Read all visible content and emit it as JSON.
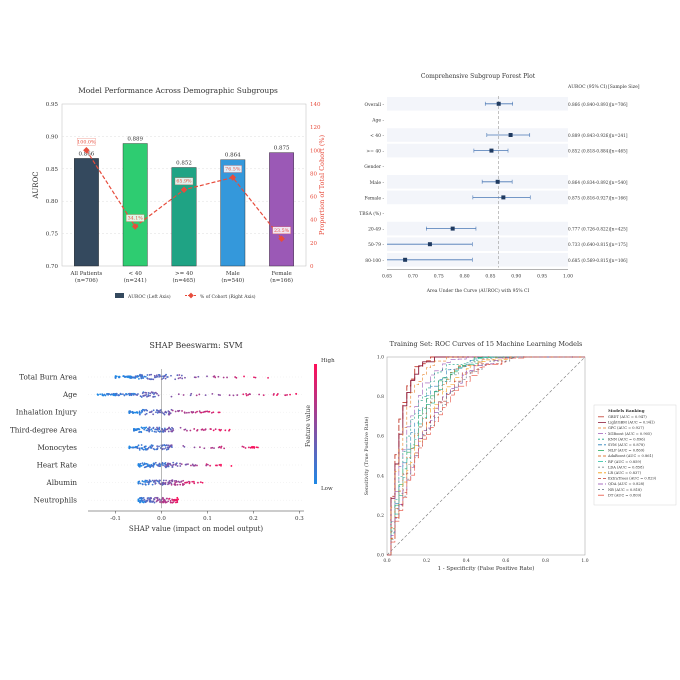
{
  "chart_data": [
    {
      "type": "bar",
      "title": "Model Performance Across Demographic Subgroups",
      "ylabel": "AUROC",
      "ylabel_right": "Proportion of Total Cohort (%)",
      "ylim": [
        0.7,
        0.95
      ],
      "ylim_right": [
        0,
        140
      ],
      "yticks": [
        "0.70",
        "0.75",
        "0.80",
        "0.85",
        "0.90",
        "0.95"
      ],
      "yticks_right": [
        "0",
        "20",
        "40",
        "60",
        "80",
        "100",
        "120",
        "140"
      ],
      "categories": [
        "All Patients",
        "< 40",
        ">= 40",
        "Male",
        "Female"
      ],
      "category_n": [
        "(n=706)",
        "(n=241)",
        "(n=465)",
        "(n=540)",
        "(n=166)"
      ],
      "values": [
        0.866,
        0.889,
        0.852,
        0.864,
        0.875
      ],
      "value_labels": [
        "0.866",
        "0.889",
        "0.852",
        "0.864",
        "0.875"
      ],
      "colors": [
        "#34495e",
        "#2ecc71",
        "#1fa384",
        "#3498db",
        "#9b59b6"
      ],
      "cohort_pct": [
        100.0,
        34.1,
        65.9,
        76.5,
        23.5
      ],
      "cohort_labels": [
        "100.0%",
        "34.1%",
        "65.9%",
        "76.5%",
        "23.5%"
      ],
      "legend": [
        "AUROC (Left Axis)",
        "% of Cohort (Right Axis)"
      ],
      "legend_position": "bottom"
    },
    {
      "type": "scatter",
      "title": "Comprehensive Subgroup Forest Plot",
      "xlabel": "Area Under the Curve (AUROC) with 95% CI",
      "xlim": [
        0.65,
        1.0
      ],
      "xticks": [
        "0.65",
        "0.70",
        "0.75",
        "0.80",
        "0.85",
        "0.90",
        "0.95",
        "1.00"
      ],
      "reference_x": 0.866,
      "header_ci": "AUROC (95% CI)",
      "header_n": "[Sample Size]",
      "rows": [
        {
          "label": "Overall -",
          "auc": 0.866,
          "lo": 0.84,
          "hi": 0.893,
          "ci_text": "0.866 (0.840-0.893)",
          "n_text": "[n=706]"
        },
        {
          "label": "Age -",
          "header": true
        },
        {
          "label": "< 40 -",
          "auc": 0.889,
          "lo": 0.843,
          "hi": 0.926,
          "ci_text": "0.889 (0.843-0.926)",
          "n_text": "[n=241]"
        },
        {
          "label": ">= 40 -",
          "auc": 0.852,
          "lo": 0.818,
          "hi": 0.884,
          "ci_text": "0.852 (0.818-0.884)",
          "n_text": "[n=465]"
        },
        {
          "label": "Gender -",
          "header": true
        },
        {
          "label": "Male -",
          "auc": 0.864,
          "lo": 0.834,
          "hi": 0.892,
          "ci_text": "0.864 (0.834-0.892)",
          "n_text": "[n=540]"
        },
        {
          "label": "Female -",
          "auc": 0.875,
          "lo": 0.816,
          "hi": 0.927,
          "ci_text": "0.875 (0.816-0.927)",
          "n_text": "[n=166]"
        },
        {
          "label": "TBSA (%) -",
          "header": true
        },
        {
          "label": "20-49 -",
          "auc": 0.777,
          "lo": 0.726,
          "hi": 0.822,
          "ci_text": "0.777 (0.726-0.822)",
          "n_text": "[n=425]"
        },
        {
          "label": "50-79 -",
          "auc": 0.733,
          "lo": 0.64,
          "hi": 0.815,
          "ci_text": "0.733 (0.640-0.815)",
          "n_text": "[n=175]"
        },
        {
          "label": "80-100 -",
          "auc": 0.685,
          "lo": 0.569,
          "hi": 0.815,
          "ci_text": "0.685 (0.569-0.815)",
          "n_text": "[n=106]"
        }
      ]
    },
    {
      "type": "scatter",
      "title": "SHAP Beeswarm: SVM",
      "xlabel": "SHAP value (impact on model output)",
      "colorbar_label": "Feature value",
      "colorbar_high": "High",
      "colorbar_low": "Low",
      "xlim": [
        -0.16,
        0.31
      ],
      "xticks": [
        "-0.1",
        "0.0",
        "0.1",
        "0.2",
        "0.3"
      ],
      "features": [
        "Total Burn Area",
        "Age",
        "Inhalation Injury",
        "Third-degree Area",
        "Monocytes",
        "Heart Rate",
        "Albumin",
        "Neutrophils"
      ],
      "feature_ranges": [
        {
          "min": -0.1,
          "max": 0.25
        },
        {
          "min": -0.14,
          "max": 0.3
        },
        {
          "min": -0.07,
          "max": 0.14
        },
        {
          "min": -0.06,
          "max": 0.15
        },
        {
          "min": -0.07,
          "max": 0.21
        },
        {
          "min": -0.05,
          "max": 0.16
        },
        {
          "min": -0.05,
          "max": 0.09
        },
        {
          "min": -0.05,
          "max": 0.04
        }
      ]
    },
    {
      "type": "line",
      "title": "Training Set: ROC Curves of 15 Machine Learning Models",
      "xlabel": "1 - Specificity (False Positive Rate)",
      "ylabel": "Sensitivity (True Positive Rate)",
      "xlim": [
        0,
        1
      ],
      "ylim": [
        0,
        1
      ],
      "xticks": [
        "0.0",
        "0.2",
        "0.4",
        "0.6",
        "0.8",
        "1.0"
      ],
      "yticks": [
        "0.0",
        "0.2",
        "0.4",
        "0.6",
        "0.8",
        "1.0"
      ],
      "legend_title": "Models Ranking",
      "legend_position": "right",
      "series": [
        {
          "name": "GBDT (AUC = 0.947)",
          "auc": 0.947,
          "color": "#c0392b",
          "dash": "6,2"
        },
        {
          "name": "LightGBM (AUC = 0.941)",
          "auc": 0.941,
          "color": "#8e1b3a",
          "dash": ""
        },
        {
          "name": "GPC (AUC = 0.927)",
          "auc": 0.927,
          "color": "#e67e22",
          "dash": "3,2"
        },
        {
          "name": "XGBoost (AUC = 0.905)",
          "auc": 0.905,
          "color": "#9b59b6",
          "dash": "5,2"
        },
        {
          "name": "KNN (AUC = 0.896)",
          "auc": 0.896,
          "color": "#16a085",
          "dash": "2,2"
        },
        {
          "name": "SVM (AUC = 0.878)",
          "auc": 0.878,
          "color": "#2980b9",
          "dash": "4,2"
        },
        {
          "name": "MLP (AUC = 0.869)",
          "auc": 0.869,
          "color": "#27ae60",
          "dash": "6,2"
        },
        {
          "name": "AdaBoost (AUC = 0.861)",
          "auc": 0.861,
          "color": "#d35400",
          "dash": "3,2"
        },
        {
          "name": "RF (AUC = 0.859)",
          "auc": 0.859,
          "color": "#1abc9c",
          "dash": "5,2"
        },
        {
          "name": "LDA (AUC = 0.858)",
          "auc": 0.858,
          "color": "#7f8c8d",
          "dash": "2,2"
        },
        {
          "name": "LR (AUC = 0.837)",
          "auc": 0.837,
          "color": "#f39c12",
          "dash": "4,2"
        },
        {
          "name": "ExtraTrees (AUC = 0.829)",
          "auc": 0.829,
          "color": "#c0392b",
          "dash": "3,2"
        },
        {
          "name": "QDA (AUC = 0.828)",
          "auc": 0.828,
          "color": "#8e44ad",
          "dash": "5,2"
        },
        {
          "name": "NB (AUC = 0.818)",
          "auc": 0.818,
          "color": "#5d6d7e",
          "dash": "2,2"
        },
        {
          "name": "DT (AUC = 0.809)",
          "auc": 0.809,
          "color": "#e74c3c",
          "dash": "6,2"
        }
      ]
    }
  ]
}
